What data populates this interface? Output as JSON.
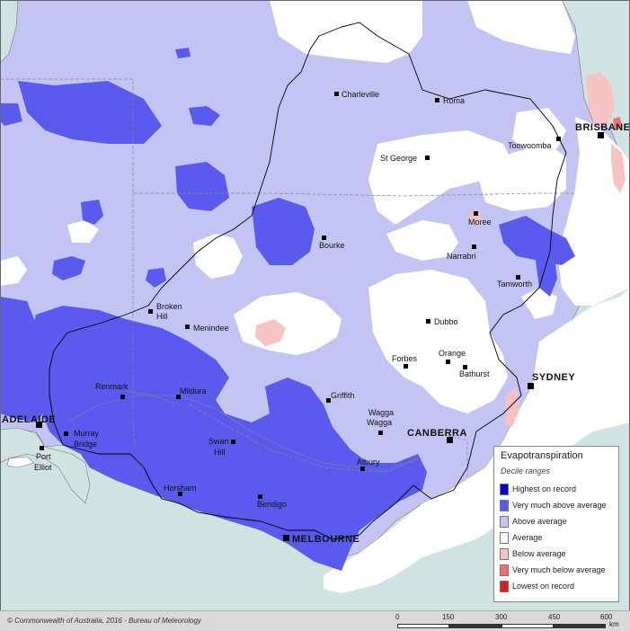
{
  "legend": {
    "title": "Evapotranspiration",
    "subtitle": "Decile ranges",
    "items": [
      {
        "label": "Highest on record",
        "color": "#0000cc"
      },
      {
        "label": "Very much above average",
        "color": "#5a5aee"
      },
      {
        "label": "Above average",
        "color": "#c4c4f4"
      },
      {
        "label": "Average",
        "color": "#ffffff"
      },
      {
        "label": "Below average",
        "color": "#f7c2c2"
      },
      {
        "label": "Very much below average",
        "color": "#ee6f6f"
      },
      {
        "label": "Lowest on record",
        "color": "#e41a1a"
      }
    ]
  },
  "cities": {
    "charleville": "Charleville",
    "roma": "Roma",
    "brisbane": "BRISBANE",
    "toowoomba": "Toowoomba",
    "st_george": "St George",
    "moree": "Moree",
    "bourke": "Bourke",
    "narrabri": "Narrabri",
    "tamworth": "Tamworth",
    "broken_hill_1": "Broken",
    "broken_hill_2": "Hill",
    "menindee": "Menindee",
    "dubbo": "Dubbo",
    "orange": "Orange",
    "forbes": "Forbes",
    "bathurst": "Bathurst",
    "sydney": "SYDNEY",
    "renmark": "Renmark",
    "mildura": "Mildura",
    "griffith": "Griffith",
    "wagga_1": "Wagga",
    "wagga_2": "Wagga",
    "adelaide": "ADELAIDE",
    "murray_bridge_1": "Murray",
    "murray_bridge_2": "Bridge",
    "swan_hill_1": "Swan",
    "swan_hill_2": "Hill",
    "canberra": "CANBERRA",
    "port_elliot_1": "Port",
    "port_elliot_2": "Elliot",
    "albury": "Albury",
    "horsham": "Horsham",
    "bendigo": "Bendigo",
    "melbourne": "MELBOURNE"
  },
  "footer": {
    "credit": "© Commonwealth of Australia, 2016 - Bureau of Meteorology",
    "scale_labels": [
      "0",
      "150",
      "300",
      "450",
      "600"
    ],
    "scale_unit": "km"
  }
}
